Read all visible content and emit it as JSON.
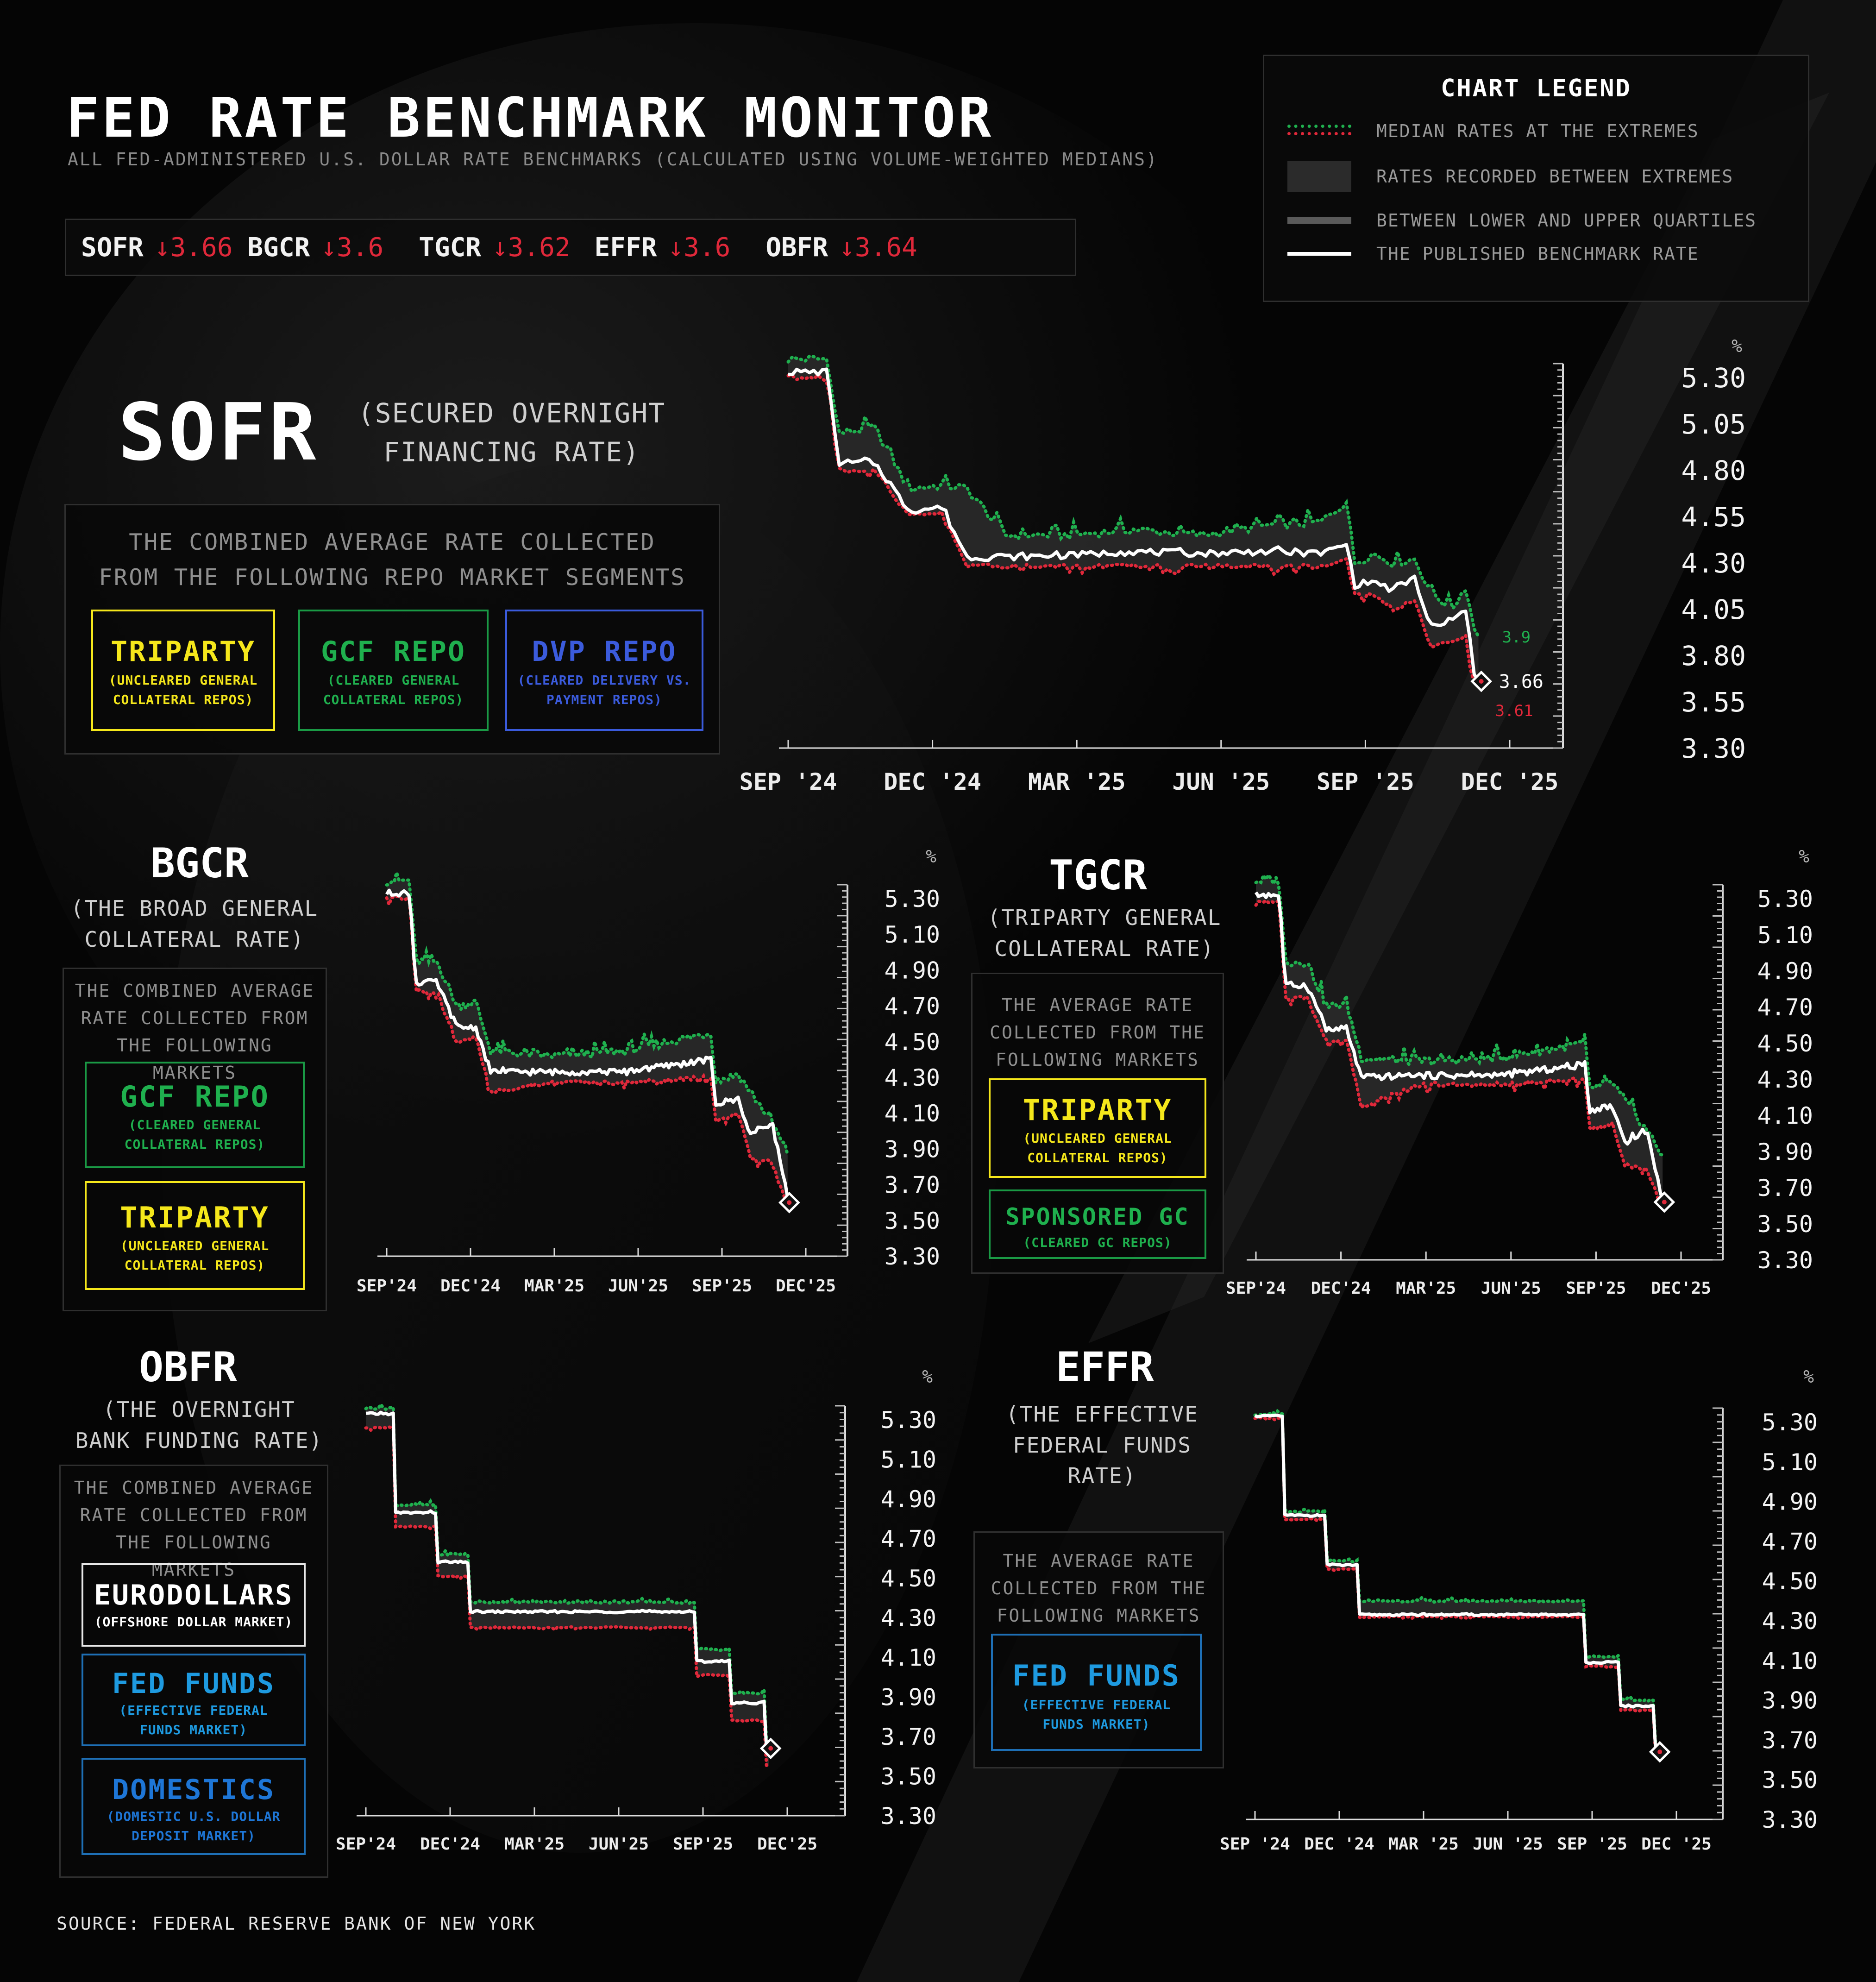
{
  "header": {
    "title": "FED RATE BENCHMARK MONITOR",
    "subtitle": "ALL FED-ADMINISTERED U.S. DOLLAR RATE BENCHMARKS (CALCULATED USING VOLUME-WEIGHTED MEDIANS)"
  },
  "ticker": [
    {
      "name": "SOFR",
      "arrow": "↓",
      "value": "3.66"
    },
    {
      "name": "BGCR",
      "arrow": "↓",
      "value": "3.6"
    },
    {
      "name": "TGCR",
      "arrow": "↓",
      "value": "3.62"
    },
    {
      "name": "EFFR",
      "arrow": "↓",
      "value": "3.6"
    },
    {
      "name": "OBFR",
      "arrow": "↓",
      "value": "3.64"
    }
  ],
  "legend": {
    "title": "CHART LEGEND",
    "items": [
      "MEDIAN RATES AT THE EXTREMES",
      "RATES RECORDED BETWEEN EXTREMES",
      "BETWEEN LOWER AND UPPER QUARTILES",
      "THE PUBLISHED BENCHMARK RATE"
    ]
  },
  "colors": {
    "upper": "#1fb04e",
    "lower": "#e0283a",
    "rate": "#ffffff",
    "triparty": "#f5e71b",
    "gcf": "#1fb04e",
    "dvp": "#3b5bdc",
    "fedfunds": "#1e9ae0",
    "domestics": "#1e76d6"
  },
  "sofr": {
    "name": "SOFR",
    "full": "(SECURED OVERNIGHT FINANCING RATE)",
    "description": "THE COMBINED AVERAGE RATE COLLECTED FROM THE FOLLOWING REPO MARKET SEGMENTS",
    "segments": [
      {
        "name": "TRIPARTY",
        "desc": "(UNCLEARED GENERAL COLLATERAL REPOS)"
      },
      {
        "name": "GCF REPO",
        "desc": "(CLEARED GENERAL COLLATERAL REPOS)"
      },
      {
        "name": "DVP REPO",
        "desc": "(CLEARED DELIVERY VS. PAYMENT REPOS)"
      }
    ],
    "unit": "%",
    "annotations": {
      "upper": "3.9",
      "rate": "3.66",
      "lower": "3.61"
    }
  },
  "bgcr": {
    "name": "BGCR",
    "full": "(THE BROAD GENERAL COLLATERAL RATE)",
    "description": "THE COMBINED AVERAGE RATE COLLECTED FROM THE FOLLOWING MARKETS",
    "segments": [
      {
        "name": "GCF REPO",
        "desc": "(CLEARED GENERAL COLLATERAL REPOS)"
      },
      {
        "name": "TRIPARTY",
        "desc": "(UNCLEARED GENERAL COLLATERAL REPOS)"
      }
    ],
    "unit": "%"
  },
  "tgcr": {
    "name": "TGCR",
    "full": "(TRIPARTY GENERAL COLLATERAL RATE)",
    "description": "THE AVERAGE RATE COLLECTED FROM THE FOLLOWING MARKETS",
    "segments": [
      {
        "name": "TRIPARTY",
        "desc": "(UNCLEARED GENERAL COLLATERAL REPOS)"
      },
      {
        "name": "SPONSORED GC",
        "desc": "(CLEARED GC REPOS)"
      }
    ],
    "unit": "%"
  },
  "obfr": {
    "name": "OBFR",
    "full": "(THE OVERNIGHT BANK FUNDING RATE)",
    "description": "THE COMBINED AVERAGE RATE COLLECTED FROM THE FOLLOWING MARKETS",
    "segments": [
      {
        "name": "EURODOLLARS",
        "desc": "(OFFSHORE DOLLAR MARKET)"
      },
      {
        "name": "FED FUNDS",
        "desc": "(EFFECTIVE FEDERAL FUNDS MARKET)"
      },
      {
        "name": "DOMESTICS",
        "desc": "(DOMESTIC U.S. DOLLAR DEPOSIT MARKET)"
      }
    ],
    "unit": "%"
  },
  "effr": {
    "name": "EFFR",
    "full": "(THE EFFECTIVE FEDERAL FUNDS RATE)",
    "description": "THE AVERAGE RATE COLLECTED FROM THE FOLLOWING MARKETS",
    "segments": [
      {
        "name": "FED FUNDS",
        "desc": "(EFFECTIVE FEDERAL FUNDS MARKET)"
      }
    ],
    "unit": "%"
  },
  "source": "SOURCE: FEDERAL RESERVE BANK OF NEW YORK",
  "chart_data": [
    {
      "id": "sofr",
      "type": "line",
      "title": "SOFR",
      "x_ticks": [
        "SEP '24",
        "DEC '24",
        "MAR '25",
        "JUN '25",
        "SEP '25",
        "DEC '25"
      ],
      "y_ticks": [
        "5.30",
        "5.05",
        "4.80",
        "4.55",
        "4.30",
        "4.05",
        "3.80",
        "3.55",
        "3.30"
      ],
      "ylim": [
        3.3,
        5.3
      ],
      "x": [
        "2024-08-15",
        "2024-09-12",
        "2024-09-19",
        "2024-10-15",
        "2024-11-08",
        "2024-12-01",
        "2024-12-19",
        "2025-01-15",
        "2025-03-01",
        "2025-04-15",
        "2025-06-01",
        "2025-07-15",
        "2025-08-25",
        "2025-09-12",
        "2025-09-18",
        "2025-10-01",
        "2025-10-15",
        "2025-10-30",
        "2025-11-10",
        "2025-11-25",
        "2025-12-05",
        "2025-12-11",
        "2025-12-16"
      ],
      "series": [
        {
          "name": "Upper extreme",
          "values": [
            5.4,
            5.4,
            5.0,
            5.03,
            4.7,
            4.72,
            4.7,
            4.45,
            4.45,
            4.48,
            4.45,
            4.5,
            4.52,
            4.63,
            4.3,
            4.35,
            4.3,
            4.32,
            4.15,
            4.05,
            4.17,
            3.95,
            3.9
          ]
        },
        {
          "name": "Published rate",
          "values": [
            5.33,
            5.33,
            4.84,
            4.84,
            4.58,
            4.6,
            4.33,
            4.33,
            4.34,
            4.36,
            4.35,
            4.36,
            4.35,
            4.4,
            4.18,
            4.2,
            4.15,
            4.22,
            3.95,
            3.98,
            4.05,
            3.7,
            3.66
          ]
        },
        {
          "name": "Lower extreme",
          "values": [
            5.3,
            5.3,
            4.8,
            4.8,
            4.55,
            4.57,
            4.28,
            4.28,
            4.28,
            4.28,
            4.28,
            4.28,
            4.28,
            4.32,
            4.12,
            4.13,
            4.05,
            4.1,
            3.85,
            3.88,
            3.9,
            3.65,
            3.61
          ]
        }
      ]
    },
    {
      "id": "bgcr",
      "type": "line",
      "title": "BGCR",
      "x_ticks": [
        "SEP'24",
        "DEC'24",
        "MAR'25",
        "JUN'25",
        "SEP'25",
        "DEC'25"
      ],
      "y_ticks": [
        "5.30",
        "5.10",
        "4.90",
        "4.70",
        "4.50",
        "4.30",
        "4.10",
        "3.90",
        "3.70",
        "3.50",
        "3.30"
      ],
      "ylim": [
        3.3,
        5.3
      ],
      "x": [
        "2024-08-15",
        "2024-09-12",
        "2024-09-19",
        "2024-10-15",
        "2024-11-08",
        "2024-12-01",
        "2024-12-19",
        "2025-03-01",
        "2025-06-01",
        "2025-09-12",
        "2025-09-18",
        "2025-10-15",
        "2025-10-30",
        "2025-11-25",
        "2025-12-11",
        "2025-12-16"
      ],
      "series": [
        {
          "name": "Upper extreme",
          "values": [
            5.4,
            5.4,
            4.95,
            4.95,
            4.7,
            4.72,
            4.45,
            4.42,
            4.45,
            4.55,
            4.28,
            4.32,
            4.22,
            4.05,
            3.9,
            3.85
          ]
        },
        {
          "name": "Published rate",
          "values": [
            5.33,
            5.33,
            4.83,
            4.83,
            4.58,
            4.58,
            4.33,
            4.33,
            4.33,
            4.4,
            4.15,
            4.18,
            3.98,
            4.05,
            3.7,
            3.6
          ]
        },
        {
          "name": "Lower extreme",
          "values": [
            5.3,
            5.3,
            4.78,
            4.78,
            4.5,
            4.52,
            4.22,
            4.27,
            4.27,
            4.3,
            4.05,
            4.1,
            3.85,
            3.82,
            3.62,
            3.58
          ]
        }
      ]
    },
    {
      "id": "tgcr",
      "type": "line",
      "title": "TGCR",
      "x_ticks": [
        "SEP'24",
        "DEC'24",
        "MAR'25",
        "JUN'25",
        "SEP'25",
        "DEC'25"
      ],
      "y_ticks": [
        "5.30",
        "5.10",
        "4.90",
        "4.70",
        "4.50",
        "4.30",
        "4.10",
        "3.90",
        "3.70",
        "3.50",
        "3.30"
      ],
      "ylim": [
        3.3,
        5.3
      ],
      "x": [
        "2024-08-15",
        "2024-09-12",
        "2024-09-19",
        "2024-10-15",
        "2024-11-08",
        "2024-12-01",
        "2024-12-19",
        "2025-03-01",
        "2025-06-01",
        "2025-09-12",
        "2025-09-18",
        "2025-10-15",
        "2025-10-30",
        "2025-11-25",
        "2025-12-11",
        "2025-12-16"
      ],
      "series": [
        {
          "name": "Upper extreme",
          "values": [
            5.4,
            5.4,
            4.95,
            4.95,
            4.7,
            4.72,
            4.42,
            4.4,
            4.42,
            4.5,
            4.25,
            4.28,
            4.18,
            4.02,
            3.9,
            3.88
          ]
        },
        {
          "name": "Published rate",
          "values": [
            5.32,
            5.32,
            4.82,
            4.82,
            4.57,
            4.58,
            4.31,
            4.32,
            4.32,
            4.38,
            4.13,
            4.15,
            3.95,
            4.02,
            3.68,
            3.62
          ]
        },
        {
          "name": "Lower extreme",
          "values": [
            5.28,
            5.28,
            4.75,
            4.75,
            4.5,
            4.52,
            4.15,
            4.27,
            4.27,
            4.3,
            4.02,
            4.05,
            3.82,
            3.8,
            3.62,
            3.6
          ]
        }
      ]
    },
    {
      "id": "obfr",
      "type": "line",
      "title": "OBFR",
      "x_ticks": [
        "SEP'24",
        "DEC'24",
        "MAR'25",
        "JUN'25",
        "SEP'25",
        "DEC'25"
      ],
      "y_ticks": [
        "5.30",
        "5.10",
        "4.90",
        "4.70",
        "4.50",
        "4.30",
        "4.10",
        "3.90",
        "3.70",
        "3.50",
        "3.30"
      ],
      "ylim": [
        3.3,
        5.3
      ],
      "x": [
        "2024-08-15",
        "2024-09-18",
        "2024-09-19",
        "2024-11-07",
        "2024-11-08",
        "2024-12-18",
        "2024-12-19",
        "2025-09-17",
        "2025-09-18",
        "2025-10-29",
        "2025-10-30",
        "2025-12-10",
        "2025-12-11",
        "2025-12-16"
      ],
      "series": [
        {
          "name": "Upper extreme",
          "values": [
            5.36,
            5.36,
            4.87,
            4.87,
            4.62,
            4.62,
            4.38,
            4.38,
            4.14,
            4.14,
            3.92,
            3.92,
            3.68,
            3.68
          ]
        },
        {
          "name": "Published rate",
          "values": [
            5.33,
            5.33,
            4.83,
            4.83,
            4.58,
            4.58,
            4.33,
            4.33,
            4.08,
            4.08,
            3.87,
            3.87,
            3.64,
            3.64
          ]
        },
        {
          "name": "Lower extreme",
          "values": [
            5.26,
            5.26,
            4.76,
            4.76,
            4.51,
            4.51,
            4.25,
            4.25,
            4.01,
            4.01,
            3.78,
            3.78,
            3.55,
            3.55
          ]
        }
      ]
    },
    {
      "id": "effr",
      "type": "line",
      "title": "EFFR",
      "x_ticks": [
        "SEP '24",
        "DEC '24",
        "MAR '25",
        "JUN '25",
        "SEP '25",
        "DEC '25"
      ],
      "y_ticks": [
        "5.30",
        "5.10",
        "4.90",
        "4.70",
        "4.50",
        "4.30",
        "4.10",
        "3.90",
        "3.70",
        "3.50",
        "3.30"
      ],
      "ylim": [
        3.3,
        5.3
      ],
      "x": [
        "2024-08-15",
        "2024-09-18",
        "2024-09-19",
        "2024-11-07",
        "2024-11-08",
        "2024-12-18",
        "2024-12-19",
        "2025-09-17",
        "2025-09-18",
        "2025-10-29",
        "2025-10-30",
        "2025-12-10",
        "2025-12-11",
        "2025-12-16"
      ],
      "series": [
        {
          "name": "Upper extreme",
          "values": [
            5.34,
            5.34,
            4.85,
            4.85,
            4.6,
            4.6,
            4.4,
            4.4,
            4.12,
            4.12,
            3.9,
            3.9,
            3.66,
            3.66
          ]
        },
        {
          "name": "Published rate",
          "values": [
            5.33,
            5.33,
            4.83,
            4.83,
            4.58,
            4.58,
            4.33,
            4.33,
            4.09,
            4.09,
            3.87,
            3.87,
            3.64,
            3.64
          ]
        },
        {
          "name": "Lower extreme",
          "values": [
            5.32,
            5.32,
            4.81,
            4.81,
            4.56,
            4.56,
            4.32,
            4.32,
            4.07,
            4.07,
            3.85,
            3.85,
            3.62,
            3.62
          ]
        }
      ]
    }
  ]
}
